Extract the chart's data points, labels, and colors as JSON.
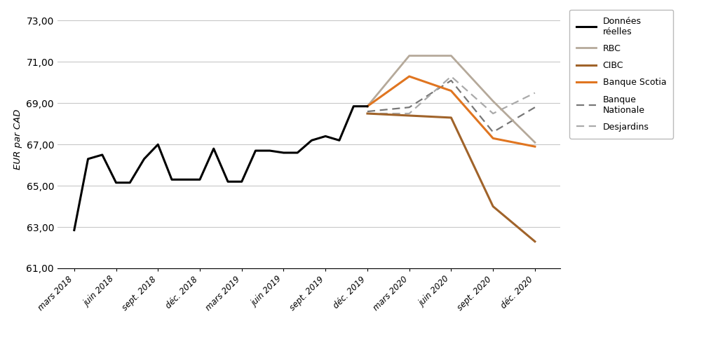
{
  "ylabel": "EUR par CAD",
  "ylim": [
    61.0,
    73.5
  ],
  "yticks": [
    61.0,
    63.0,
    65.0,
    67.0,
    69.0,
    71.0,
    73.0
  ],
  "x_labels": [
    "mars 2018",
    "juin 2018",
    "sept. 2018",
    "déc. 2018",
    "mars 2019",
    "juin 2019",
    "sept. 2019",
    "déc. 2019",
    "mars 2020",
    "juin 2020",
    "sept. 2020",
    "déc. 2020"
  ],
  "donnees_reelles": {
    "x": [
      0,
      0.33,
      0.67,
      1.0,
      1.33,
      1.67,
      2.0,
      2.33,
      2.67,
      3.0,
      3.33,
      3.67,
      4.0,
      4.33,
      4.67,
      5.0,
      5.33,
      5.67,
      6.0,
      6.33,
      6.67,
      7.0
    ],
    "y": [
      62.85,
      66.3,
      66.5,
      65.15,
      65.15,
      66.3,
      67.0,
      65.3,
      65.3,
      65.3,
      66.8,
      65.2,
      65.2,
      66.7,
      66.7,
      66.6,
      66.6,
      67.2,
      67.4,
      67.2,
      68.85,
      68.85
    ],
    "color": "#000000",
    "linewidth": 2.2,
    "label": "Données\nréelles"
  },
  "rbc": {
    "x": [
      7.0,
      8.0,
      9.0,
      10.0,
      11.0
    ],
    "y": [
      68.85,
      71.3,
      71.3,
      69.1,
      67.1
    ],
    "color": "#b5a99a",
    "linewidth": 2.0,
    "label": "RBC"
  },
  "cibc": {
    "x": [
      7.0,
      8.0,
      9.0,
      10.0,
      11.0
    ],
    "y": [
      68.5,
      68.4,
      68.3,
      64.0,
      62.3
    ],
    "color": "#a0632a",
    "linewidth": 2.2,
    "label": "CIBC"
  },
  "banque_scotia": {
    "x": [
      7.0,
      8.0,
      9.0,
      10.0,
      11.0
    ],
    "y": [
      68.85,
      70.3,
      69.6,
      67.3,
      66.9
    ],
    "color": "#e07520",
    "linewidth": 2.2,
    "label": "Banque Scotia"
  },
  "banque_nationale": {
    "x": [
      7.0,
      8.0,
      9.0,
      10.0,
      11.0
    ],
    "y": [
      68.6,
      68.8,
      70.1,
      67.6,
      68.8
    ],
    "color": "#777777",
    "linewidth": 1.6,
    "label": "Banque\nNationale"
  },
  "desjardins": {
    "x": [
      7.0,
      8.0,
      9.0,
      10.0,
      11.0
    ],
    "y": [
      68.5,
      68.5,
      70.3,
      68.5,
      69.5
    ],
    "color": "#aaaaaa",
    "linewidth": 1.6,
    "label": "Desjardins"
  },
  "background_color": "#ffffff",
  "grid_color": "#c8c8c8"
}
